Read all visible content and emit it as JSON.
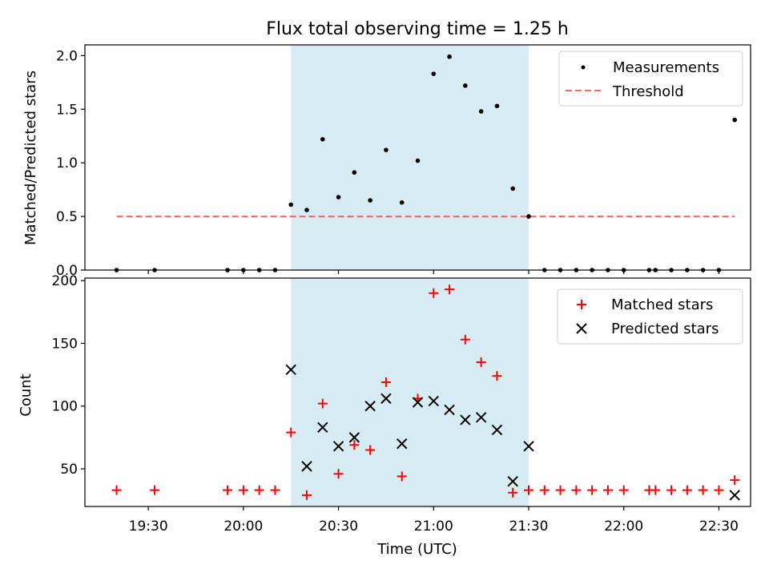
{
  "title": "Flux total observing time = 1.25 h",
  "colors": {
    "shade": "#add8e6",
    "matched": "#ff0000",
    "predicted": "#000000",
    "threshold": "#ff6666",
    "measure": "#000000"
  },
  "chart_data": [
    {
      "type": "scatter",
      "ylabel": "Matched/Predicted stars",
      "xlim": [
        "19:10",
        "22:40"
      ],
      "ylim": [
        0,
        2.1
      ],
      "yticks": [
        {
          "value": 0.0,
          "label": "0.0"
        },
        {
          "value": 0.5,
          "label": "0.5"
        },
        {
          "value": 1.0,
          "label": "1.0"
        },
        {
          "value": 1.5,
          "label": "1.5"
        },
        {
          "value": 2.0,
          "label": "2.0"
        }
      ],
      "shaded_interval": [
        "20:15",
        "21:30"
      ],
      "legend": {
        "position": "top-right",
        "measurements": "Measurements",
        "threshold": "Threshold"
      },
      "threshold": {
        "name": "Threshold",
        "value": 0.5,
        "x": [
          "19:20",
          "22:35"
        ]
      },
      "series": [
        {
          "name": "Measurements",
          "points": [
            {
              "x": "19:20",
              "y": 0.0
            },
            {
              "x": "19:32",
              "y": 0.0
            },
            {
              "x": "19:55",
              "y": 0.0
            },
            {
              "x": "20:00",
              "y": 0.0
            },
            {
              "x": "20:05",
              "y": 0.0
            },
            {
              "x": "20:10",
              "y": 0.0
            },
            {
              "x": "20:15",
              "y": 0.61
            },
            {
              "x": "20:20",
              "y": 0.56
            },
            {
              "x": "20:25",
              "y": 1.22
            },
            {
              "x": "20:30",
              "y": 0.68
            },
            {
              "x": "20:35",
              "y": 0.91
            },
            {
              "x": "20:40",
              "y": 0.65
            },
            {
              "x": "20:45",
              "y": 1.12
            },
            {
              "x": "20:50",
              "y": 0.63
            },
            {
              "x": "20:55",
              "y": 1.02
            },
            {
              "x": "21:00",
              "y": 1.83
            },
            {
              "x": "21:05",
              "y": 1.99
            },
            {
              "x": "21:10",
              "y": 1.72
            },
            {
              "x": "21:15",
              "y": 1.48
            },
            {
              "x": "21:20",
              "y": 1.53
            },
            {
              "x": "21:25",
              "y": 0.76
            },
            {
              "x": "21:30",
              "y": 0.5
            },
            {
              "x": "21:35",
              "y": 0.0
            },
            {
              "x": "21:40",
              "y": 0.0
            },
            {
              "x": "21:45",
              "y": 0.0
            },
            {
              "x": "21:50",
              "y": 0.0
            },
            {
              "x": "21:55",
              "y": 0.0
            },
            {
              "x": "22:00",
              "y": 0.0
            },
            {
              "x": "22:08",
              "y": 0.0
            },
            {
              "x": "22:10",
              "y": 0.0
            },
            {
              "x": "22:15",
              "y": 0.0
            },
            {
              "x": "22:20",
              "y": 0.0
            },
            {
              "x": "22:25",
              "y": 0.0
            },
            {
              "x": "22:30",
              "y": 0.0
            },
            {
              "x": "22:35",
              "y": 1.4
            }
          ]
        }
      ]
    },
    {
      "type": "scatter",
      "xlabel": "Time (UTC)",
      "ylabel": "Count",
      "xlim": [
        "19:10",
        "22:40"
      ],
      "ylim": [
        20,
        202
      ],
      "xticks": [
        {
          "value": "19:30",
          "label": "19:30"
        },
        {
          "value": "20:00",
          "label": "20:00"
        },
        {
          "value": "20:30",
          "label": "20:30"
        },
        {
          "value": "21:00",
          "label": "21:00"
        },
        {
          "value": "21:30",
          "label": "21:30"
        },
        {
          "value": "22:00",
          "label": "22:00"
        },
        {
          "value": "22:30",
          "label": "22:30"
        }
      ],
      "yticks": [
        {
          "value": 50,
          "label": "50"
        },
        {
          "value": 100,
          "label": "100"
        },
        {
          "value": 150,
          "label": "150"
        },
        {
          "value": 200,
          "label": "200"
        }
      ],
      "shaded_interval": [
        "20:15",
        "21:30"
      ],
      "legend": {
        "position": "top-right",
        "matched": "Matched stars",
        "predicted": "Predicted stars"
      },
      "series": [
        {
          "name": "Matched stars",
          "points": [
            {
              "x": "19:20",
              "y": 33
            },
            {
              "x": "19:32",
              "y": 33
            },
            {
              "x": "19:55",
              "y": 33
            },
            {
              "x": "20:00",
              "y": 33
            },
            {
              "x": "20:05",
              "y": 33
            },
            {
              "x": "20:10",
              "y": 33
            },
            {
              "x": "20:15",
              "y": 79
            },
            {
              "x": "20:20",
              "y": 29
            },
            {
              "x": "20:25",
              "y": 102
            },
            {
              "x": "20:30",
              "y": 46
            },
            {
              "x": "20:35",
              "y": 69
            },
            {
              "x": "20:40",
              "y": 65
            },
            {
              "x": "20:45",
              "y": 119
            },
            {
              "x": "20:50",
              "y": 44
            },
            {
              "x": "20:55",
              "y": 106
            },
            {
              "x": "21:00",
              "y": 190
            },
            {
              "x": "21:05",
              "y": 193
            },
            {
              "x": "21:10",
              "y": 153
            },
            {
              "x": "21:15",
              "y": 135
            },
            {
              "x": "21:20",
              "y": 124
            },
            {
              "x": "21:25",
              "y": 31
            },
            {
              "x": "21:30",
              "y": 33
            },
            {
              "x": "21:35",
              "y": 33
            },
            {
              "x": "21:40",
              "y": 33
            },
            {
              "x": "21:45",
              "y": 33
            },
            {
              "x": "21:50",
              "y": 33
            },
            {
              "x": "21:55",
              "y": 33
            },
            {
              "x": "22:00",
              "y": 33
            },
            {
              "x": "22:08",
              "y": 33
            },
            {
              "x": "22:10",
              "y": 33
            },
            {
              "x": "22:15",
              "y": 33
            },
            {
              "x": "22:20",
              "y": 33
            },
            {
              "x": "22:25",
              "y": 33
            },
            {
              "x": "22:30",
              "y": 33
            },
            {
              "x": "22:35",
              "y": 41
            }
          ]
        },
        {
          "name": "Predicted stars",
          "points": [
            {
              "x": "20:15",
              "y": 129
            },
            {
              "x": "20:20",
              "y": 52
            },
            {
              "x": "20:25",
              "y": 83
            },
            {
              "x": "20:30",
              "y": 68
            },
            {
              "x": "20:35",
              "y": 75
            },
            {
              "x": "20:40",
              "y": 100
            },
            {
              "x": "20:45",
              "y": 106
            },
            {
              "x": "20:50",
              "y": 70
            },
            {
              "x": "20:55",
              "y": 103
            },
            {
              "x": "21:00",
              "y": 104
            },
            {
              "x": "21:05",
              "y": 97
            },
            {
              "x": "21:10",
              "y": 89
            },
            {
              "x": "21:15",
              "y": 91
            },
            {
              "x": "21:20",
              "y": 81
            },
            {
              "x": "21:25",
              "y": 40
            },
            {
              "x": "21:30",
              "y": 68
            },
            {
              "x": "22:35",
              "y": 29
            }
          ]
        }
      ]
    }
  ]
}
